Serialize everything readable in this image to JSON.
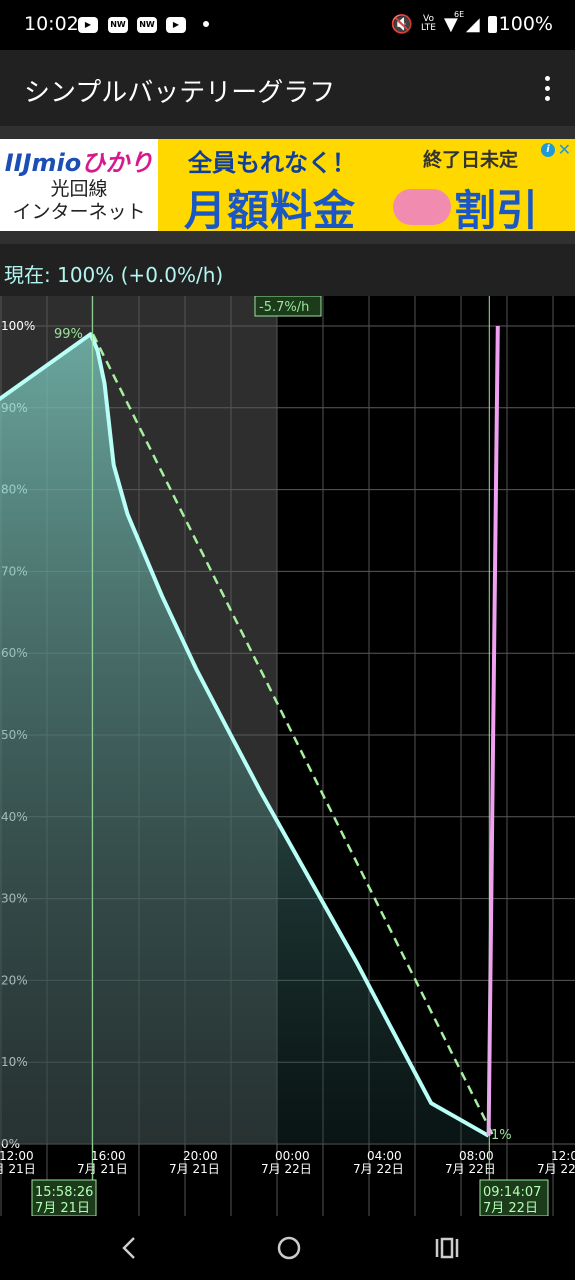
{
  "status_bar": {
    "time": "10:02",
    "icons": [
      "youtube-icon",
      "news-icon",
      "news-icon",
      "youtube-icon",
      "dot-icon",
      "mute-icon",
      "volte-icon",
      "wifi-icon",
      "signal-icon",
      "battery-icon"
    ],
    "volte": [
      "Vo",
      "LTE"
    ],
    "wifi_tag": "6E",
    "battery": "100%"
  },
  "app_bar": {
    "title": "シンプルバッテリーグラフ"
  },
  "ad": {
    "logo_text": "IIJmio",
    "logo_text2": "ひかり",
    "left_line1": "光回線",
    "left_line2": "インターネット",
    "headline": "全員もれなく！",
    "end_date": "終了日未定",
    "main_text": "月額料金",
    "main_text2": "割引",
    "choices_label": "i",
    "close_label": "✕"
  },
  "info": {
    "current": "現在: 100%   (+0.0%/h)"
  },
  "chart_data": {
    "type": "line",
    "yticks": [
      "100%",
      "90%",
      "80%",
      "70%",
      "60%",
      "50%",
      "40%",
      "30%",
      "20%",
      "10%",
      "0%"
    ],
    "xticks": [
      {
        "time": "12:00",
        "date": "7月 21日"
      },
      {
        "time": "16:00",
        "date": "7月 21日"
      },
      {
        "time": "20:00",
        "date": "7月 21日"
      },
      {
        "time": "00:00",
        "date": "7月 22日"
      },
      {
        "time": "04:00",
        "date": "7月 22日"
      },
      {
        "time": "08:00",
        "date": "7月 22日"
      },
      {
        "time": "12:00",
        "date": "7月 22日"
      }
    ],
    "x_start_hour": 12,
    "x_end_hour": 37,
    "ylim": [
      0,
      100
    ],
    "series": [
      {
        "values": [
          [
            11.9,
            91
          ],
          [
            15.9,
            99
          ],
          [
            16.2,
            97
          ],
          [
            16.5,
            93
          ],
          [
            16.9,
            83
          ],
          [
            17.5,
            77
          ],
          [
            19.0,
            67
          ],
          [
            20.5,
            58
          ],
          [
            21.8,
            51
          ],
          [
            23.3,
            43
          ],
          [
            25.5,
            32
          ],
          [
            27.5,
            22
          ],
          [
            29.0,
            14
          ],
          [
            30.7,
            5
          ],
          [
            33.2,
            1
          ]
        ]
      },
      {
        "values": [
          [
            33.2,
            1
          ],
          [
            33.6,
            100
          ]
        ]
      }
    ],
    "trend_line": {
      "start": [
        16.0,
        99
      ],
      "end": [
        33.4,
        1
      ],
      "label": "-5.7%/h"
    },
    "annotations": {
      "max_label": "99%",
      "min_label": "1%"
    },
    "markers": [
      {
        "time": "15:58:26",
        "date": "7月 21日"
      },
      {
        "time": "09:14:07",
        "date": "7月 22日"
      }
    ]
  }
}
